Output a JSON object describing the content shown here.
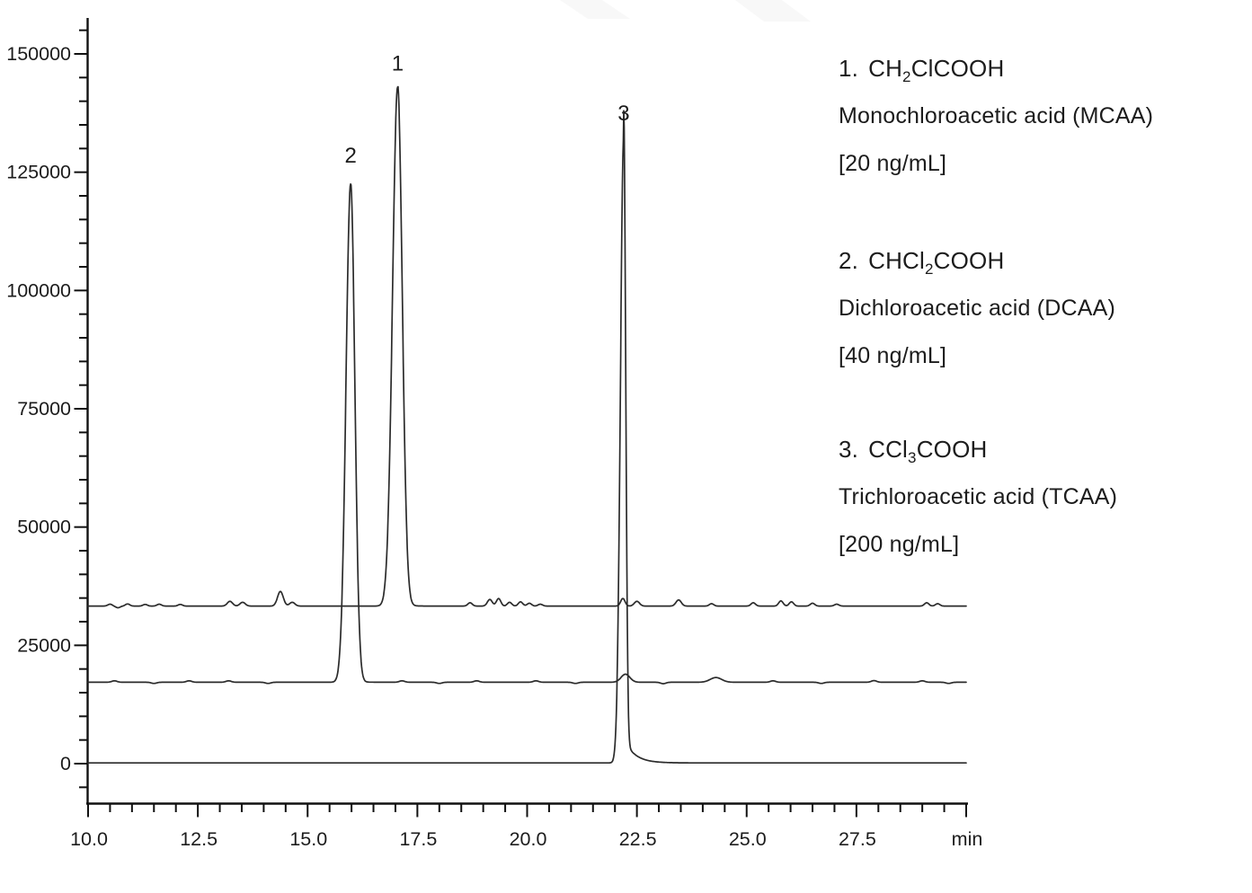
{
  "figure": {
    "background": "#ffffff",
    "axis_color": "#111111",
    "trace_color": "#2b2b2b",
    "text_color": "#1c1c1c",
    "watermark_color": "#f8f8f8"
  },
  "legend": {
    "entries": [
      {
        "number": "1.",
        "formula_pre": "CH",
        "formula_sub": "2",
        "formula_post": "ClCOOH",
        "name": "Monochloroacetic acid (MCAA)",
        "concentration": "[20 ng/mL]"
      },
      {
        "number": "2.",
        "formula_pre": "CHCl",
        "formula_sub": "2",
        "formula_post": "COOH",
        "name": "Dichloroacetic acid (DCAA)",
        "concentration": "[40 ng/mL]"
      },
      {
        "number": "3.",
        "formula_pre": "CCl",
        "formula_sub": "3",
        "formula_post": "COOH",
        "name": "Trichloroacetic acid (TCAA)",
        "concentration": "[200 ng/mL]"
      }
    ]
  },
  "chart_data": {
    "type": "line",
    "xlabel": "min",
    "x_axis": {
      "range": [
        10,
        30
      ],
      "minor_step": 0.5,
      "tick_values": [
        10,
        12.5,
        15,
        17.5,
        20,
        22.5,
        25,
        27.5,
        30
      ],
      "tick_labels": [
        "10.0",
        "12.5",
        "15.0",
        "17.5",
        "20.0",
        "22.5",
        "25.0",
        "27.5",
        "min"
      ]
    },
    "y_axis": {
      "range": [
        -5000,
        155000
      ],
      "minor_step": 5000,
      "tick_values": [
        0,
        25000,
        50000,
        75000,
        100000,
        125000,
        150000
      ],
      "tick_labels": [
        "0",
        "25000",
        "50000",
        "75000",
        "100000",
        "125000",
        "150000"
      ]
    },
    "series": [
      {
        "id": "mcaa",
        "name": "Trace 1 - Monochloroacetic acid (MCAA) 20 ng/mL",
        "baseline": 33300,
        "main_peak": {
          "label": "1",
          "retention_min": 17.05,
          "apex_value": 143000,
          "sigma_left": 0.115,
          "sigma_right": 0.105,
          "tail_height": 600,
          "tail_tau": 0.15
        },
        "noise_bumps": [
          [
            10.5,
            400,
            0.05
          ],
          [
            10.68,
            -350,
            0.05
          ],
          [
            10.9,
            450,
            0.05
          ],
          [
            11.3,
            350,
            0.05
          ],
          [
            11.62,
            400,
            0.05
          ],
          [
            12.1,
            350,
            0.05
          ],
          [
            13.23,
            1000,
            0.06
          ],
          [
            13.52,
            800,
            0.06
          ],
          [
            14.38,
            3100,
            0.065
          ],
          [
            14.65,
            800,
            0.06
          ],
          [
            18.7,
            700,
            0.05
          ],
          [
            19.15,
            1400,
            0.055
          ],
          [
            19.35,
            1600,
            0.05
          ],
          [
            19.6,
            800,
            0.05
          ],
          [
            19.85,
            900,
            0.05
          ],
          [
            20.05,
            600,
            0.05
          ],
          [
            20.3,
            400,
            0.05
          ],
          [
            22.18,
            1600,
            0.05
          ],
          [
            22.5,
            1000,
            0.06
          ],
          [
            23.45,
            1300,
            0.06
          ],
          [
            24.2,
            500,
            0.05
          ],
          [
            25.15,
            700,
            0.05
          ],
          [
            25.78,
            1100,
            0.05
          ],
          [
            26.02,
            900,
            0.05
          ],
          [
            26.5,
            600,
            0.05
          ],
          [
            27.05,
            400,
            0.05
          ],
          [
            29.1,
            700,
            0.05
          ],
          [
            29.35,
            500,
            0.05
          ]
        ]
      },
      {
        "id": "dcaa",
        "name": "Trace 2 - Dichloroacetic acid (DCAA) 40 ng/mL",
        "baseline": 17200,
        "main_peak": {
          "label": "2",
          "retention_min": 15.98,
          "apex_value": 122500,
          "sigma_left": 0.105,
          "sigma_right": 0.095,
          "tail_height": 400,
          "tail_tau": 0.15
        },
        "noise_bumps": [
          [
            10.6,
            300,
            0.06
          ],
          [
            11.5,
            -250,
            0.06
          ],
          [
            12.3,
            300,
            0.06
          ],
          [
            13.2,
            300,
            0.06
          ],
          [
            14.1,
            -250,
            0.06
          ],
          [
            17.15,
            300,
            0.06
          ],
          [
            18.0,
            -250,
            0.06
          ],
          [
            18.85,
            300,
            0.06
          ],
          [
            20.2,
            300,
            0.06
          ],
          [
            21.1,
            -250,
            0.06
          ],
          [
            22.24,
            1700,
            0.1
          ],
          [
            23.1,
            -300,
            0.06
          ],
          [
            24.3,
            1000,
            0.13
          ],
          [
            25.6,
            300,
            0.06
          ],
          [
            26.7,
            -250,
            0.06
          ],
          [
            27.9,
            350,
            0.06
          ],
          [
            29.0,
            300,
            0.06
          ],
          [
            29.6,
            -250,
            0.06
          ]
        ]
      },
      {
        "id": "tcaa",
        "name": "Trace 3 - Trichloroacetic acid (TCAA) 200 ng/mL",
        "baseline": 150,
        "main_peak": {
          "label": "3",
          "retention_min": 22.2,
          "apex_value": 132800,
          "sigma_left": 0.075,
          "sigma_right": 0.045,
          "tail_height": 5200,
          "tail_tau": 0.24
        },
        "noise_bumps": []
      }
    ],
    "annotations": [
      {
        "text": "1",
        "x_min": 17.05,
        "y_value": 148000
      },
      {
        "text": "2",
        "x_min": 15.98,
        "y_value": 128500
      },
      {
        "text": "3",
        "x_min": 22.2,
        "y_value": 137500
      }
    ]
  }
}
